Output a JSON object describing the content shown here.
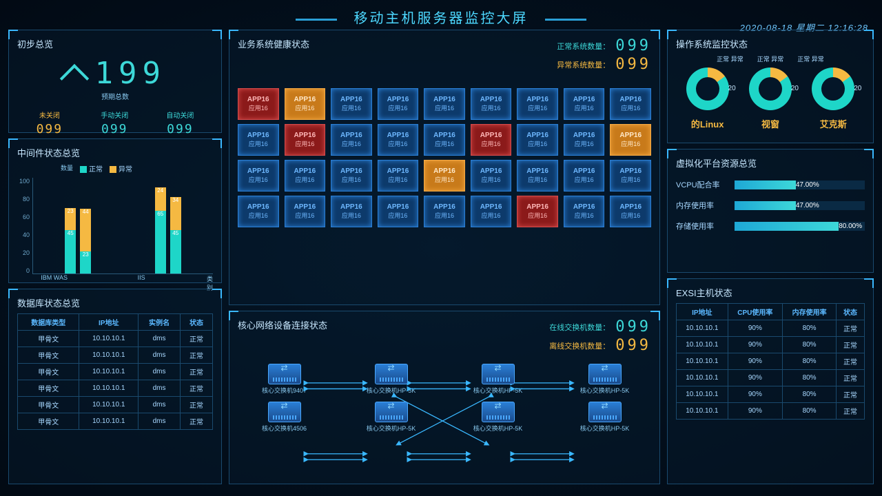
{
  "header": {
    "title": "移动主机服务器监控大屏",
    "date": "2020-08-18 星期二 12:16:28"
  },
  "overview": {
    "title": "初步总览",
    "total_label": "预期总数",
    "total_value": "199",
    "items": [
      {
        "label": "未关闭",
        "value": "099",
        "color": "#f5b942"
      },
      {
        "label": "手动关闭",
        "value": "099",
        "color": "#3dd8d8"
      },
      {
        "label": "自动关闭",
        "value": "099",
        "color": "#3dd8d8"
      }
    ]
  },
  "middleware": {
    "title": "中间件状态总览",
    "y_label": "数量",
    "x_label": "类别",
    "legend": {
      "normal": "正常",
      "abnormal": "异常"
    },
    "y_ticks": [
      0,
      20,
      40,
      60,
      80,
      100
    ],
    "y_max": 100,
    "colors": {
      "normal": "#1ed6c8",
      "abnormal": "#f5b942"
    },
    "categories": [
      "IBM WAS",
      "",
      "IIS",
      ""
    ],
    "groups": [
      {
        "bars": [
          {
            "n": 45,
            "a": 23
          },
          {
            "n": 23,
            "a": 44
          }
        ]
      },
      {
        "bars": [
          {
            "n": 65,
            "a": 24
          },
          {
            "n": 45,
            "a": 34
          }
        ]
      }
    ]
  },
  "database": {
    "title": "数据库状态总览",
    "columns": [
      "数据库类型",
      "IP地址",
      "实例名",
      "状态"
    ],
    "rows": [
      [
        "甲骨文",
        "10.10.10.1",
        "dms",
        "正常"
      ],
      [
        "甲骨文",
        "10.10.10.1",
        "dms",
        "正常"
      ],
      [
        "甲骨文",
        "10.10.10.1",
        "dms",
        "正常"
      ],
      [
        "甲骨文",
        "10.10.10.1",
        "dms",
        "正常"
      ],
      [
        "甲骨文",
        "10.10.10.1",
        "dms",
        "正常"
      ],
      [
        "甲骨文",
        "10.10.10.1",
        "dms",
        "正常"
      ]
    ]
  },
  "health": {
    "title": "业务系统健康状态",
    "normal_label": "正常系统数量：",
    "abnormal_label": "异常系统数量：",
    "normal_count": "099",
    "abnormal_count": "099",
    "tile_label_top": "APP16",
    "tile_label_bottom": "应用16",
    "tiles": [
      "red",
      "orange",
      "blue",
      "blue",
      "blue",
      "blue",
      "blue",
      "blue",
      "blue",
      "blue",
      "red",
      "blue",
      "blue",
      "blue",
      "red",
      "blue",
      "blue",
      "orange",
      "blue",
      "blue",
      "blue",
      "blue",
      "orange",
      "blue",
      "blue",
      "blue",
      "blue",
      "blue",
      "blue",
      "blue",
      "blue",
      "blue",
      "blue",
      "red",
      "blue",
      "blue"
    ]
  },
  "network": {
    "title": "核心网络设备连接状态",
    "online_label": "在线交换机数量：",
    "offline_label": "离线交换机数量：",
    "online_count": "099",
    "offline_count": "099",
    "nodes": [
      "核心交换机9407",
      "核心交换机HP-5K",
      "核心交换机HP-5K",
      "核心交换机HP-5K",
      "核心交换机4506",
      "核心交换机HP-5K",
      "核心交换机HP-5K",
      "核心交换机HP-5K"
    ]
  },
  "os": {
    "title": "操作系统监控状态",
    "legend": {
      "normal": "正常",
      "abnormal": "异常"
    },
    "normal_color": "#1ed6c8",
    "abnormal_color": "#f5b942",
    "items": [
      {
        "label": "的Linux",
        "normal_pct": 85,
        "value": "20"
      },
      {
        "label": "视窗",
        "normal_pct": 85,
        "value": "20"
      },
      {
        "label": "艾克斯",
        "normal_pct": 85,
        "value": "20"
      }
    ]
  },
  "virt": {
    "title": "虚拟化平台资源总览",
    "bars": [
      {
        "label": "VCPU配合率",
        "pct": 47,
        "text": "47.00%"
      },
      {
        "label": "内存使用率",
        "pct": 47,
        "text": "47.00%"
      },
      {
        "label": "存储使用率",
        "pct": 80,
        "text": "80.00%"
      }
    ]
  },
  "exsi": {
    "title": "EXSI主机状态",
    "columns": [
      "IP地址",
      "CPU使用率",
      "内存使用率",
      "状态"
    ],
    "rows": [
      [
        "10.10.10.1",
        "90%",
        "80%",
        "正常"
      ],
      [
        "10.10.10.1",
        "90%",
        "80%",
        "正常"
      ],
      [
        "10.10.10.1",
        "90%",
        "80%",
        "正常"
      ],
      [
        "10.10.10.1",
        "90%",
        "80%",
        "正常"
      ],
      [
        "10.10.10.1",
        "90%",
        "80%",
        "正常"
      ],
      [
        "10.10.10.1",
        "90%",
        "80%",
        "正常"
      ]
    ]
  }
}
